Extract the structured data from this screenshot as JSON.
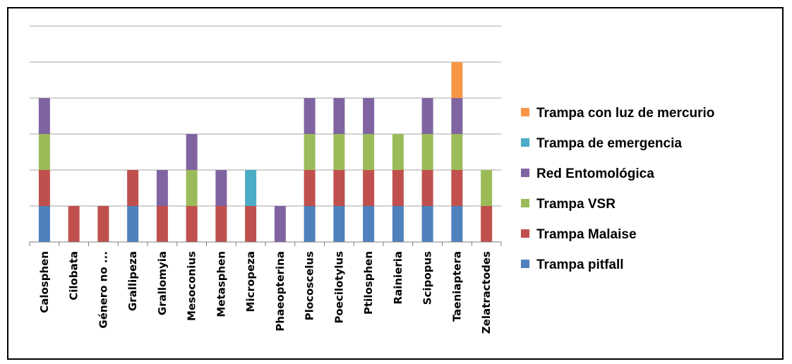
{
  "chart_data": {
    "type": "bar",
    "stacked": true,
    "grid": true,
    "legend_position": "right",
    "categories": [
      "Calosphen",
      "Cilobata",
      "Género no ...",
      "Grallipeza",
      "Grallomyia",
      "Mesoconius",
      "Metasphen",
      "Micropeza",
      "Phaeopterina",
      "Plocoscelus",
      "Poecilotylus",
      "Ptilosphen",
      "Rainieria",
      "Scipopus",
      "Taeniaptera",
      "Zelatractodes"
    ],
    "series": [
      {
        "name": "Trampa pitfall",
        "color": "#4F81BD",
        "values": [
          1,
          0,
          0,
          1,
          0,
          0,
          0,
          0,
          0,
          1,
          1,
          1,
          1,
          1,
          1,
          0
        ]
      },
      {
        "name": "Trampa Malaise",
        "color": "#C0504D",
        "values": [
          1,
          1,
          1,
          1,
          1,
          1,
          1,
          1,
          0,
          1,
          1,
          1,
          1,
          1,
          1,
          1
        ]
      },
      {
        "name": "Trampa VSR",
        "color": "#9BBB59",
        "values": [
          1,
          0,
          0,
          0,
          0,
          1,
          0,
          0,
          0,
          1,
          1,
          1,
          1,
          1,
          1,
          1
        ]
      },
      {
        "name": "Red Entomológica",
        "color": "#8064A2",
        "values": [
          1,
          0,
          0,
          0,
          1,
          1,
          1,
          0,
          1,
          1,
          1,
          1,
          0,
          1,
          1,
          0
        ]
      },
      {
        "name": "Trampa de emergencia",
        "color": "#4BACC6",
        "values": [
          0,
          0,
          0,
          0,
          0,
          0,
          0,
          1,
          0,
          0,
          0,
          0,
          0,
          0,
          0,
          0
        ]
      },
      {
        "name": "Trampa con luz de mercurio",
        "color": "#F79646",
        "values": [
          0,
          0,
          0,
          0,
          0,
          0,
          0,
          0,
          0,
          0,
          0,
          0,
          0,
          0,
          1,
          0
        ]
      }
    ],
    "legend_order": [
      "Trampa con luz de mercurio",
      "Trampa de emergencia",
      "Red Entomológica",
      "Trampa VSR",
      "Trampa Malaise",
      "Trampa pitfall"
    ],
    "ylim": [
      0,
      6
    ]
  }
}
